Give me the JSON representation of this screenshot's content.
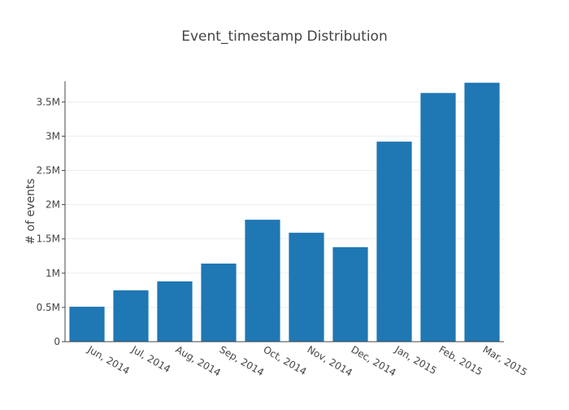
{
  "chart_data": {
    "type": "bar",
    "title": "Event_timestamp Distribution",
    "xlabel": "",
    "ylabel": "# of events",
    "categories": [
      "Jun, 2014",
      "Jul, 2014",
      "Aug, 2014",
      "Sep, 2014",
      "Oct, 2014",
      "Nov, 2014",
      "Dec, 2014",
      "Jan, 2015",
      "Feb, 2015",
      "Mar, 2015"
    ],
    "values": [
      510000,
      750000,
      880000,
      1140000,
      1780000,
      1590000,
      1380000,
      2920000,
      3630000,
      3780000
    ],
    "ylim": [
      0,
      3800000
    ],
    "yticks": [
      0,
      500000,
      1000000,
      1500000,
      2000000,
      2500000,
      3000000,
      3500000
    ],
    "ytick_labels": [
      "0",
      "0.5M",
      "1M",
      "1.5M",
      "2M",
      "2.5M",
      "3M",
      "3.5M"
    ],
    "grid": true,
    "bar_color": "#1f77b4",
    "grid_color": "#eeeeee",
    "axis_color": "#444444"
  }
}
